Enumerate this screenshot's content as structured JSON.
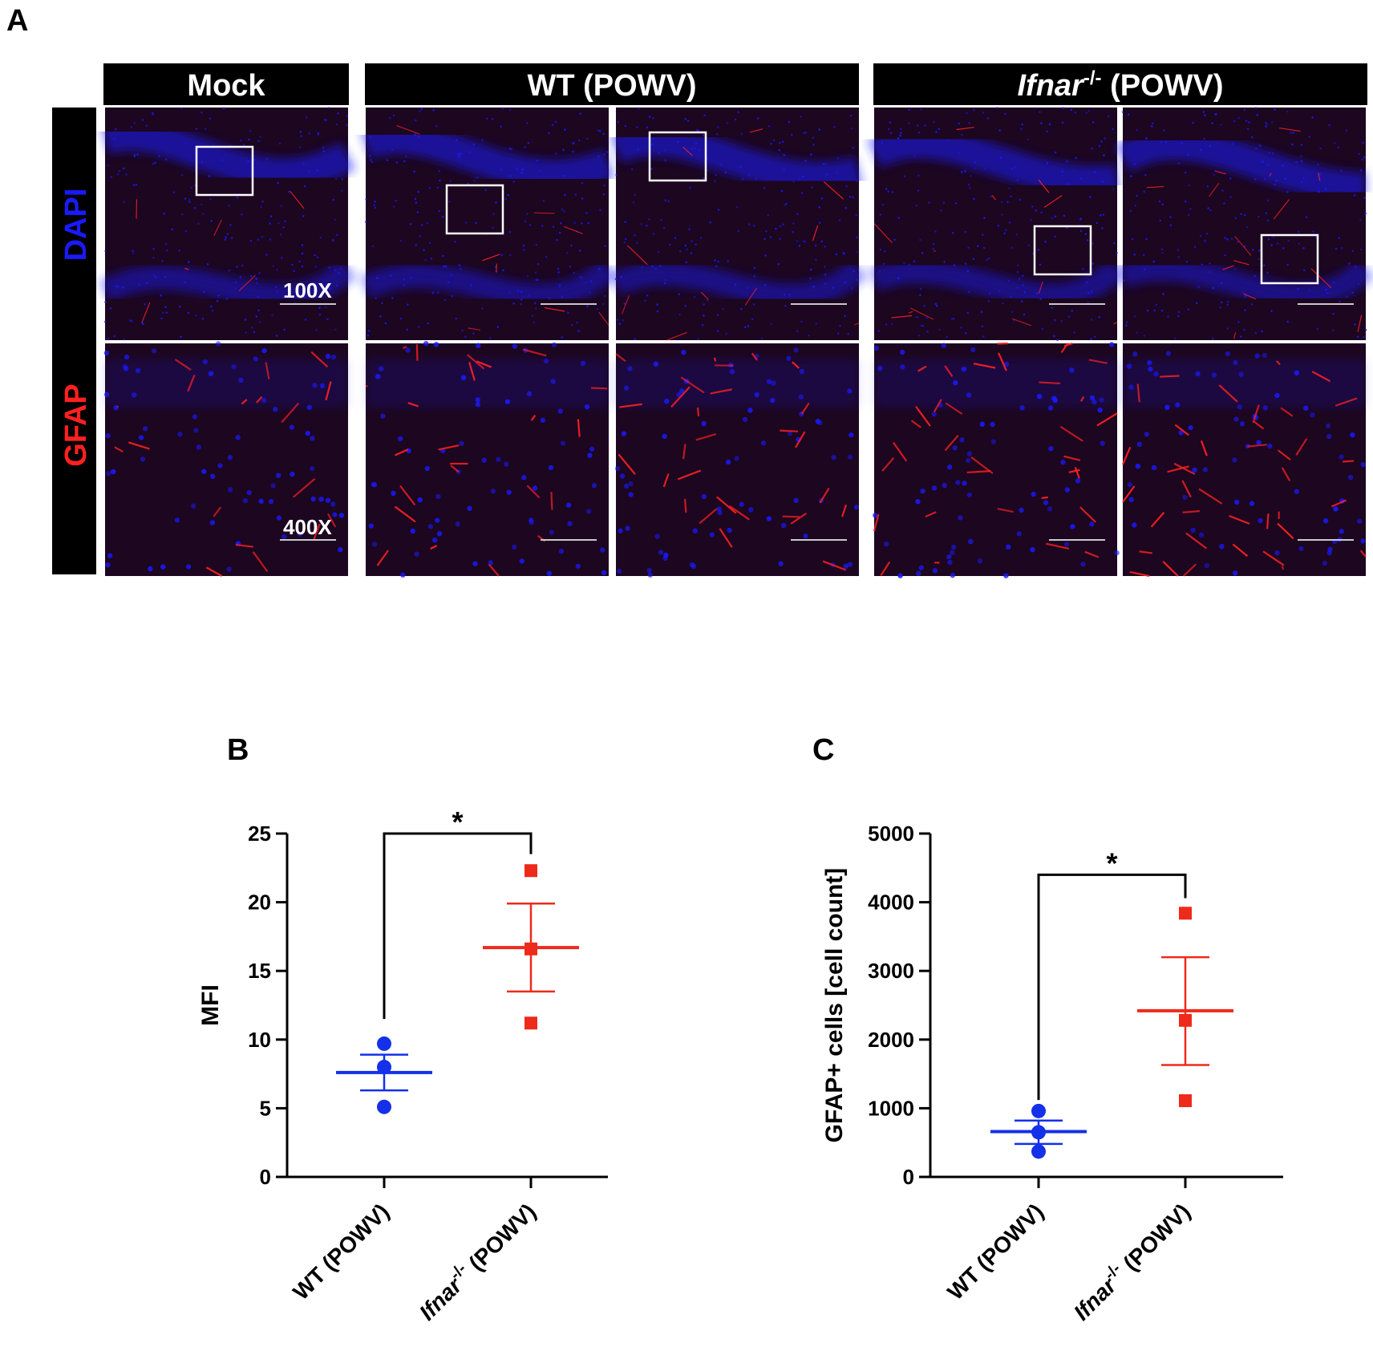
{
  "panelA": {
    "letter": "A",
    "groups": [
      {
        "label": "Mock",
        "italic": false,
        "sup": "",
        "rest": ""
      },
      {
        "label": "WT (POWV)",
        "italic": false,
        "sup": "",
        "rest": ""
      },
      {
        "label": "Ifnar",
        "italic": true,
        "sup": "-/-",
        "rest": " (POWV)"
      }
    ],
    "stain_top": "DAPI",
    "stain_bottom": "GFAP",
    "mag_top": "100X",
    "mag_bottom": "400X",
    "colors": {
      "dapi": "#1a1aff",
      "gfap": "#ff2020",
      "tissue": "#1c0620"
    }
  },
  "chart_data": [
    {
      "panel": "B",
      "type": "scatter",
      "ylabel": "MFI",
      "ylim": [
        0,
        25
      ],
      "yticks": [
        0,
        5,
        10,
        15,
        20,
        25
      ],
      "categories": [
        "WT (POWV)",
        "Ifnar-/- (POWV)"
      ],
      "series": [
        {
          "category": "WT (POWV)",
          "marker": "circle",
          "color": "#1430e8",
          "points": [
            9.7,
            8.0,
            5.1
          ],
          "mean": 7.6,
          "sem": [
            6.3,
            8.9
          ]
        },
        {
          "category": "Ifnar-/- (POWV)",
          "marker": "square",
          "color": "#ee2a1b",
          "points": [
            22.3,
            16.6,
            11.2
          ],
          "mean": 16.7,
          "sem": [
            13.5,
            19.9
          ]
        }
      ],
      "significance": "*"
    },
    {
      "panel": "C",
      "type": "scatter",
      "ylabel": "GFAP+ cells [cell count]",
      "ylim": [
        0,
        5000
      ],
      "yticks": [
        0,
        1000,
        2000,
        3000,
        4000,
        5000
      ],
      "categories": [
        "WT (POWV)",
        "Ifnar-/- (POWV)"
      ],
      "series": [
        {
          "category": "WT (POWV)",
          "marker": "circle",
          "color": "#1430e8",
          "points": [
            960,
            650,
            370
          ],
          "mean": 660,
          "sem": [
            480,
            820
          ]
        },
        {
          "category": "Ifnar-/- (POWV)",
          "marker": "square",
          "color": "#ee2a1b",
          "points": [
            3840,
            2280,
            1110
          ],
          "mean": 2420,
          "sem": [
            1630,
            3200
          ]
        }
      ],
      "significance": "*"
    }
  ],
  "cat_text": {
    "wt": "WT (POWV)",
    "ko_main": "Ifnar",
    "ko_sup": "-/-",
    "ko_rest": " (POWV)"
  }
}
